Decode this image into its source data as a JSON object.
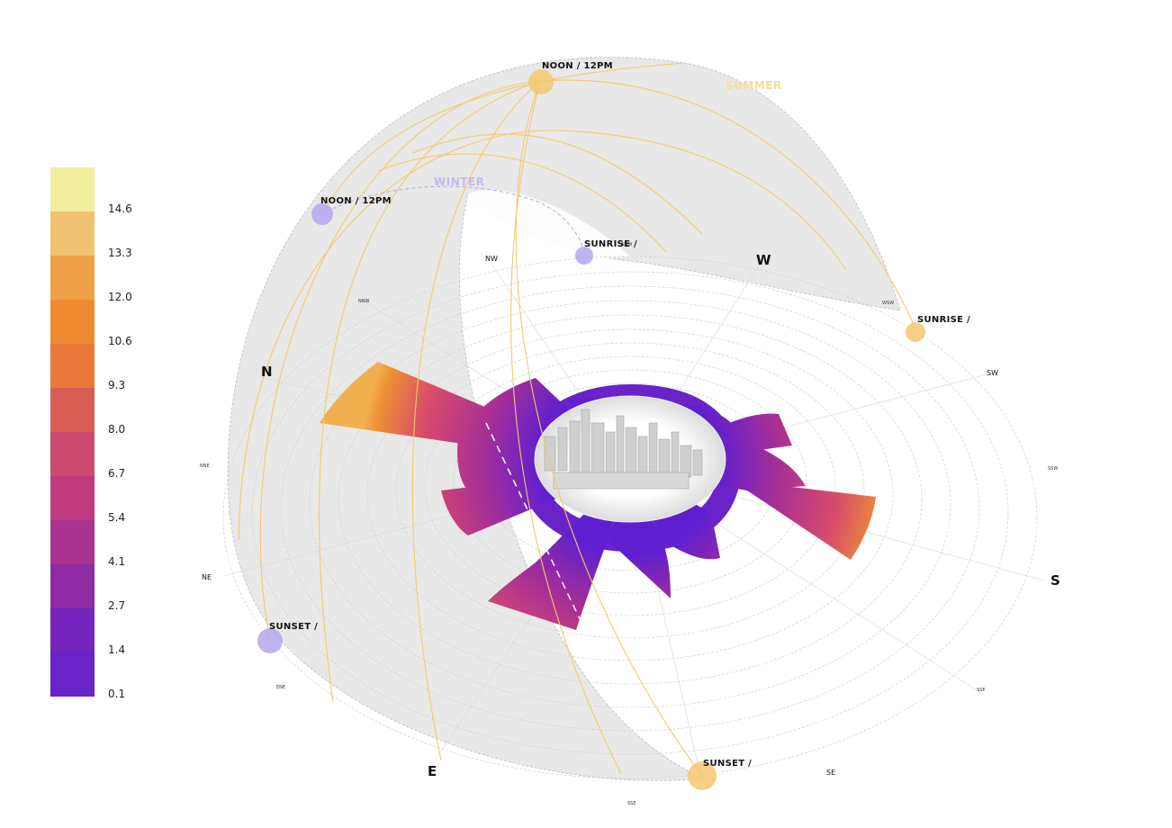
{
  "legend": {
    "ticks": [
      "14.6",
      "13.3",
      "12.0",
      "10.6",
      "9.3",
      "8.0",
      "6.7",
      "5.4",
      "4.1",
      "2.7",
      "1.4",
      "0.1"
    ],
    "colors": [
      "#f1ee9f",
      "#f0c372",
      "#ef9f45",
      "#ee8a30",
      "#e8783a",
      "#d85d55",
      "#cb4a70",
      "#c03a80",
      "#aa3291",
      "#8f2ca4",
      "#7424bb",
      "#6a22c9"
    ]
  },
  "seasons": {
    "summer": "SUMMER",
    "winter": "WINTER"
  },
  "sun_labels": {
    "summer_noon": "NOON / 12PM",
    "winter_noon": "NOON / 12PM",
    "winter_sunrise": "SUNRISE /",
    "summer_sunrise": "SUNRISE /",
    "winter_sunset": "SUNSET /",
    "summer_sunset": "SUNSET /"
  },
  "directions": {
    "n": "N",
    "w": "W",
    "s": "S",
    "e": "E",
    "nw": "NW",
    "sw": "SW",
    "ne": "NE",
    "se": "SE",
    "nnw": "NNW",
    "wsw": "WSW",
    "ssw": "SSW",
    "sse_right": "SSE",
    "nne": "NNE",
    "ene": "ENE",
    "sse_bottom": "SSE",
    "nnw2": "NNW"
  },
  "colors": {
    "summer": "#f3c870",
    "winter": "#b6a6ee",
    "dome": "#e9e9e9",
    "season_summer_text": "#f6dc9c",
    "season_winter_text": "#c6b8f0"
  },
  "chart_data": {
    "type": "radial wind rose (legend scale)",
    "legend_values": [
      14.6,
      13.3,
      12.0,
      10.6,
      9.3,
      8.0,
      6.7,
      5.4,
      4.1,
      2.7,
      1.4,
      0.1
    ],
    "directions": [
      "N",
      "NNE",
      "NE",
      "ENE",
      "E",
      "SSE",
      "SE",
      "SSE",
      "S",
      "SSW",
      "SW",
      "WSW",
      "W",
      "NW",
      "NNW"
    ]
  }
}
